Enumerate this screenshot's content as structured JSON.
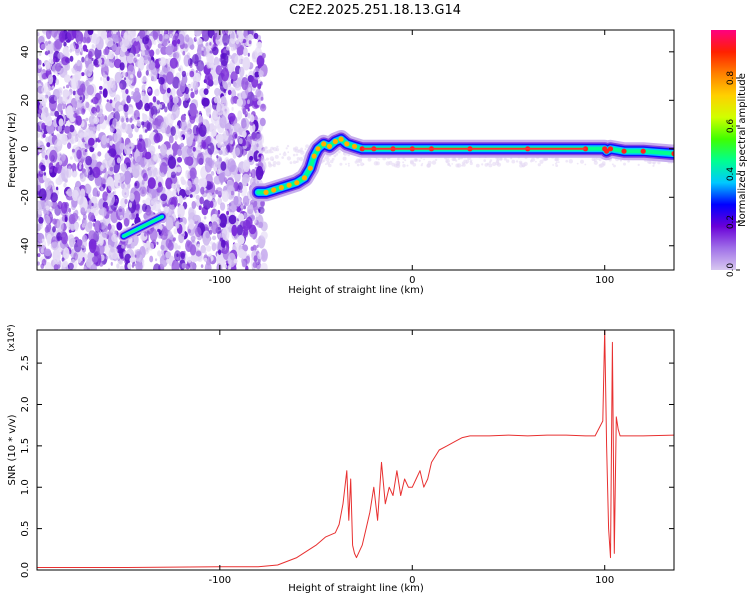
{
  "title": "C2E2.2025.251.18.13.G14",
  "chart_data": [
    {
      "type": "heatmap",
      "xlabel": "Height of straight line (km)",
      "ylabel": "Frequency (Hz)",
      "xlim": [
        -195,
        136
      ],
      "ylim": [
        -50,
        49
      ],
      "x_ticks": [
        {
          "v": -100,
          "label": "-100"
        },
        {
          "v": 0,
          "label": "0"
        },
        {
          "v": 100,
          "label": "100"
        }
      ],
      "y_ticks": [
        {
          "v": -40,
          "label": "-40"
        },
        {
          "v": -20,
          "label": "-20"
        },
        {
          "v": 0,
          "label": "0"
        },
        {
          "v": 20,
          "label": "20"
        },
        {
          "v": 40,
          "label": "40"
        }
      ],
      "colorbar": {
        "label": "Normalized spectral amplitude",
        "range": [
          0,
          1
        ],
        "ticks": [
          {
            "v": 0.0,
            "label": "0.0"
          },
          {
            "v": 0.2,
            "label": "0.2"
          },
          {
            "v": 0.4,
            "label": "0.4"
          },
          {
            "v": 0.6,
            "label": "0.6"
          },
          {
            "v": 0.8,
            "label": "0.8"
          }
        ],
        "colors": [
          "#d8c8f0",
          "#a070e8",
          "#6a00d8",
          "#0000ff",
          "#00c8ff",
          "#00ff90",
          "#40ff00",
          "#d0ff00",
          "#ffd000",
          "#ff8000",
          "#ff2000",
          "#ff0080"
        ]
      },
      "ridge": [
        [
          -150,
          -36
        ],
        [
          -145,
          -34
        ],
        [
          -140,
          -32
        ],
        [
          -135,
          -30
        ],
        [
          -130,
          -28
        ],
        [
          -80,
          -18
        ],
        [
          -76,
          -18
        ],
        [
          -72,
          -17
        ],
        [
          -68,
          -16
        ],
        [
          -64,
          -15
        ],
        [
          -60,
          -14
        ],
        [
          -56,
          -12
        ],
        [
          -53,
          -8
        ],
        [
          -51,
          -3
        ],
        [
          -49,
          0
        ],
        [
          -46,
          2
        ],
        [
          -43,
          1
        ],
        [
          -40,
          3
        ],
        [
          -37,
          4
        ],
        [
          -34,
          2
        ],
        [
          -30,
          1
        ],
        [
          -26,
          0
        ],
        [
          -20,
          0
        ],
        [
          -10,
          0
        ],
        [
          0,
          0
        ],
        [
          10,
          0
        ],
        [
          30,
          0
        ],
        [
          60,
          0
        ],
        [
          90,
          0
        ],
        [
          100,
          0
        ],
        [
          101,
          -1
        ],
        [
          103,
          0
        ],
        [
          110,
          -1
        ],
        [
          120,
          -1
        ],
        [
          136,
          -2
        ]
      ]
    },
    {
      "type": "line",
      "xlabel": "Height of straight line (km)",
      "ylabel": "SNR (10 * v/v)",
      "y_multiplier": "(x10⁴)",
      "xlim": [
        -195,
        136
      ],
      "ylim": [
        0,
        2.9
      ],
      "x_ticks": [
        {
          "v": -100,
          "label": "-100"
        },
        {
          "v": 0,
          "label": "0"
        },
        {
          "v": 100,
          "label": "100"
        }
      ],
      "y_ticks": [
        {
          "v": 0.0,
          "label": "0.0"
        },
        {
          "v": 0.5,
          "label": "0.5"
        },
        {
          "v": 1.0,
          "label": "1.0"
        },
        {
          "v": 1.5,
          "label": "1.5"
        },
        {
          "v": 2.0,
          "label": "2.0"
        },
        {
          "v": 2.5,
          "label": "2.5"
        }
      ],
      "color": "#e83030",
      "x": [
        -195,
        -150,
        -100,
        -80,
        -70,
        -60,
        -50,
        -45,
        -40,
        -38,
        -36,
        -34,
        -33,
        -32,
        -31,
        -30,
        -29,
        -28,
        -26,
        -24,
        -22,
        -20,
        -18,
        -16,
        -14,
        -12,
        -10,
        -8,
        -6,
        -4,
        -2,
        0,
        2,
        4,
        6,
        8,
        10,
        14,
        18,
        22,
        26,
        30,
        40,
        50,
        60,
        70,
        80,
        90,
        95,
        99,
        100,
        101,
        102,
        103,
        104,
        105,
        106,
        107,
        108,
        110,
        120,
        136
      ],
      "y": [
        0.03,
        0.03,
        0.04,
        0.04,
        0.06,
        0.15,
        0.3,
        0.4,
        0.45,
        0.55,
        0.8,
        1.2,
        0.6,
        1.1,
        0.3,
        0.2,
        0.15,
        0.2,
        0.3,
        0.5,
        0.7,
        1.0,
        0.6,
        1.3,
        0.8,
        1.0,
        0.9,
        1.2,
        0.9,
        1.1,
        1.0,
        1.0,
        1.1,
        1.2,
        1.0,
        1.1,
        1.3,
        1.45,
        1.5,
        1.55,
        1.6,
        1.62,
        1.62,
        1.63,
        1.62,
        1.63,
        1.63,
        1.62,
        1.62,
        1.8,
        2.9,
        1.5,
        0.5,
        0.15,
        2.75,
        0.2,
        1.85,
        1.7,
        1.62,
        1.62,
        1.62,
        1.63
      ]
    }
  ]
}
